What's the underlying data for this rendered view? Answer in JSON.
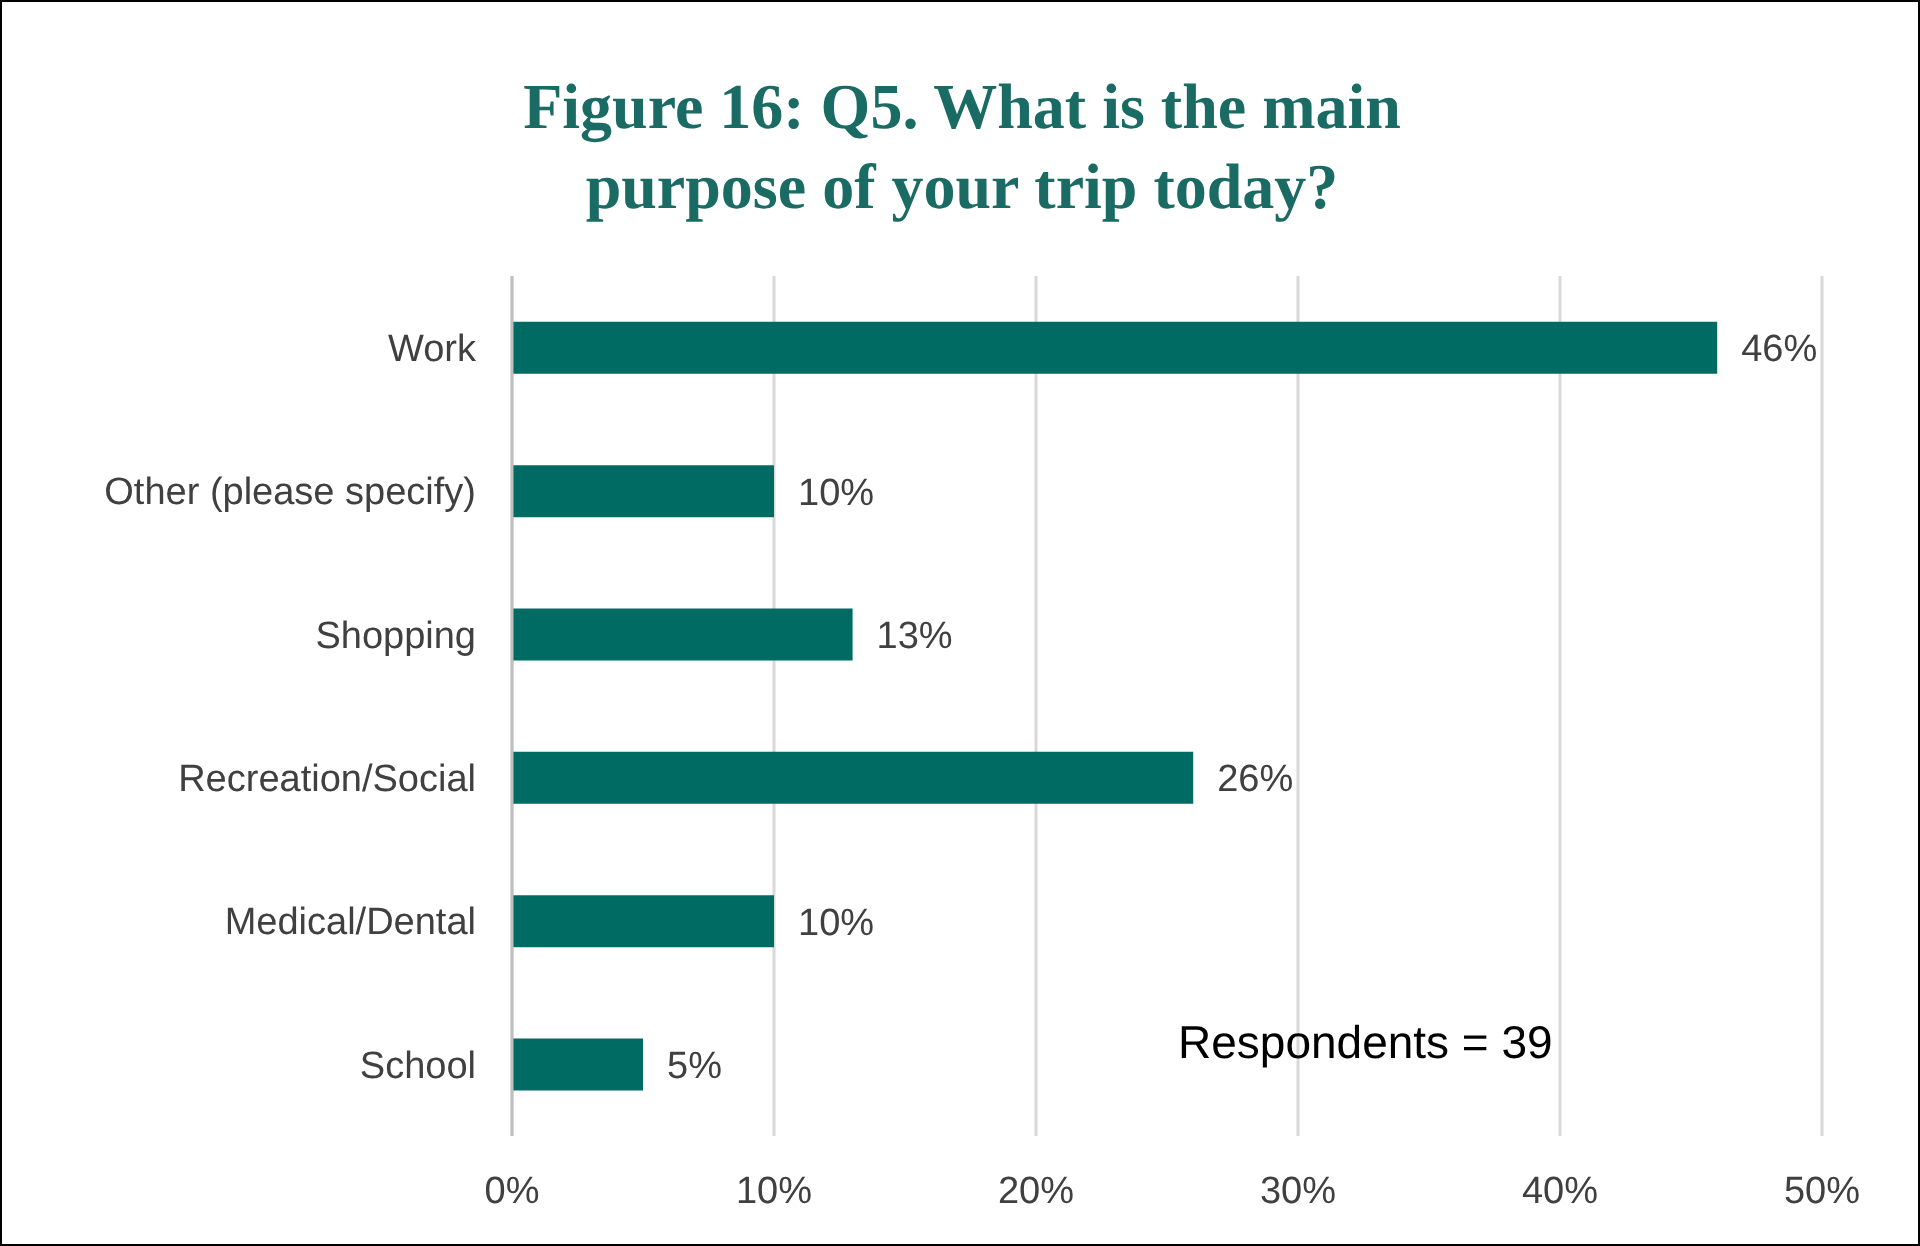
{
  "chart_data": {
    "type": "bar",
    "orientation": "horizontal",
    "title": "Figure 16: Q5. What is the main purpose of your trip today?",
    "categories": [
      "Work",
      "Other (please specify)",
      "Shopping",
      "Recreation/Social",
      "Medical/Dental",
      "School"
    ],
    "values": [
      46,
      10,
      13,
      26,
      10,
      5
    ],
    "value_labels": [
      "46%",
      "10%",
      "13%",
      "26%",
      "10%",
      "5%"
    ],
    "color": "#006b63",
    "xlim": [
      0,
      50
    ],
    "xticks": [
      {
        "value": 0,
        "label": "0%"
      },
      {
        "value": 10,
        "label": "10%"
      },
      {
        "value": 20,
        "label": "20%"
      },
      {
        "value": 30,
        "label": "30%"
      },
      {
        "value": 40,
        "label": "40%"
      },
      {
        "value": 50,
        "label": "50%"
      }
    ],
    "grid": "x",
    "annotations": [
      "Respondents = 39"
    ]
  }
}
